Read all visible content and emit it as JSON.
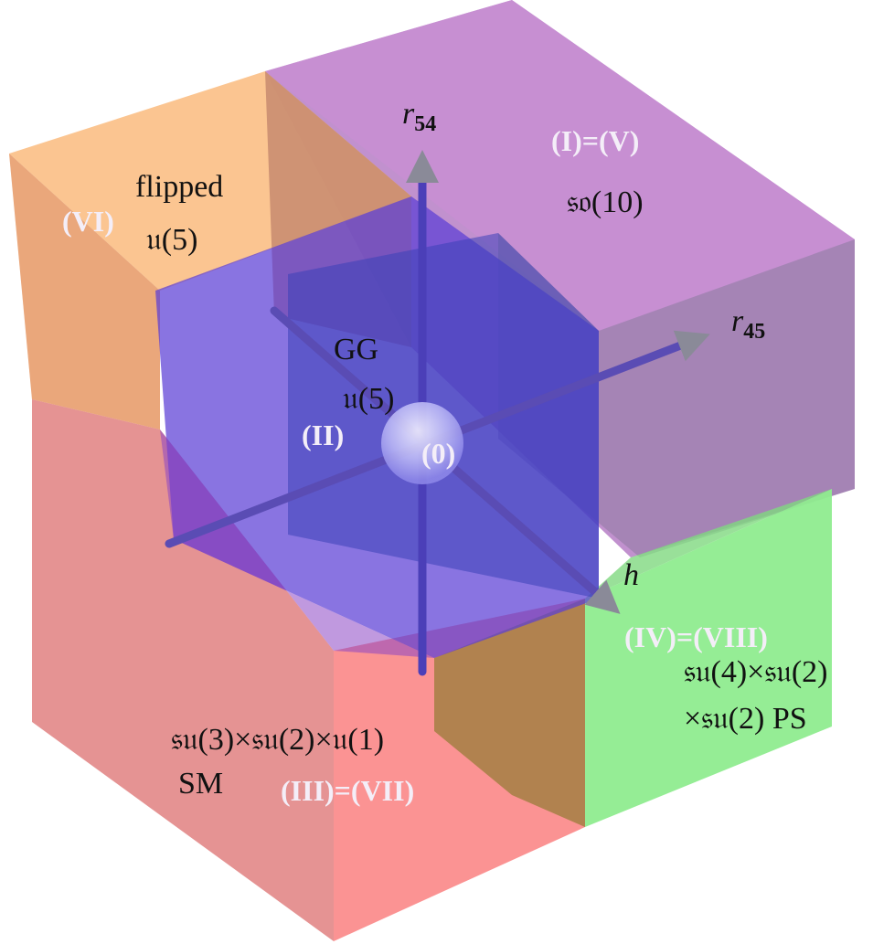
{
  "axes": {
    "r54": {
      "symbol": "r",
      "subscript": "54"
    },
    "r45": {
      "symbol": "r",
      "subscript": "45"
    },
    "h": {
      "symbol": "h"
    }
  },
  "regions": {
    "I_V": {
      "id": "(I)=(V)",
      "algebra": "𝔰𝔬(10)",
      "color": "#b77fc4"
    },
    "VI": {
      "id": "(VI)",
      "line1": "flipped",
      "algebra": "𝔲(5)",
      "color": "#f7b07a"
    },
    "II": {
      "id": "(II)",
      "name": "GG",
      "algebra": "𝔲(5)",
      "color": "#5a3fd0"
    },
    "origin": {
      "id": "(0)",
      "color": "#b9b6f5"
    },
    "III_VII": {
      "id": "(III)=(VII)",
      "algebra": "𝔰𝔲(3)×𝔰𝔲(2)×𝔲(1)",
      "name": "SM",
      "color": "#f27f7f"
    },
    "IV_VIII": {
      "id": "(IV)=(VIII)",
      "line1": "𝔰𝔲(4)×𝔰𝔲(2)",
      "line2": "×𝔰𝔲(2) PS",
      "color": "#86e886"
    }
  }
}
